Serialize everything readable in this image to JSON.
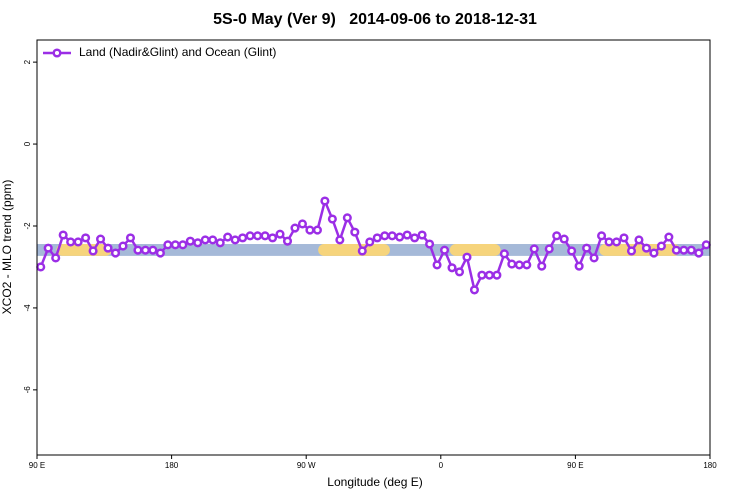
{
  "chart_data": {
    "type": "line",
    "title": "5S-0 May (Ver 9)   2014-09-06 to 2018-12-31",
    "x_label": "Longitude (deg E)",
    "y_label": "XCO2 - MLO trend (ppm)",
    "xlim": [
      90,
      540
    ],
    "ylim": [
      -7.59,
      2.54
    ],
    "xticks": [
      {
        "value": 90,
        "label": "90 E"
      },
      {
        "value": 180,
        "label": "180"
      },
      {
        "value": 270,
        "label": "90 W"
      },
      {
        "value": 360,
        "label": "0"
      },
      {
        "value": 450,
        "label": "90 E"
      },
      {
        "value": 540,
        "label": "180"
      }
    ],
    "yticks": [
      2,
      0,
      -2,
      -4,
      -6
    ],
    "legend": "top-left",
    "band": {
      "range": [
        -2.73,
        -2.44
      ],
      "color": "#a5b9d8",
      "land_color": "#f6d47c",
      "land": [
        [
          103,
          140
        ],
        [
          278,
          326
        ],
        [
          366,
          400
        ],
        [
          466,
          520
        ]
      ]
    },
    "x": [
      92.5,
      97.5,
      102.5,
      107.5,
      112.5,
      117.5,
      122.5,
      127.5,
      132.5,
      137.5,
      142.5,
      147.5,
      152.5,
      157.5,
      162.5,
      167.5,
      172.5,
      177.5,
      182.5,
      187.5,
      192.5,
      197.5,
      202.5,
      207.5,
      212.5,
      217.5,
      222.5,
      227.5,
      232.5,
      237.5,
      242.5,
      247.5,
      252.5,
      257.5,
      262.5,
      267.5,
      272.5,
      277.5,
      282.5,
      287.5,
      292.5,
      297.5,
      302.5,
      307.5,
      312.5,
      317.5,
      322.5,
      327.5,
      332.5,
      337.5,
      342.5,
      347.5,
      352.5,
      357.5,
      362.5,
      367.5,
      372.5,
      377.5,
      382.5,
      387.5,
      392.5,
      397.5,
      402.5,
      407.5,
      412.5,
      417.5,
      422.5,
      427.5,
      432.5,
      437.5,
      442.5,
      447.5,
      452.5,
      457.5,
      462.5,
      467.5,
      472.5,
      477.5,
      482.5,
      487.5,
      492.5,
      497.5,
      502.5,
      507.5,
      512.5,
      517.5,
      522.5,
      527.5,
      532.5,
      537.5
    ],
    "series": [
      {
        "name": "Land (Nadir&Glint) and Ocean (Glint)",
        "color": "#9b2ee6",
        "values": [
          -3.0,
          -2.54,
          -2.78,
          -2.22,
          -2.39,
          -2.39,
          -2.29,
          -2.61,
          -2.32,
          -2.54,
          -2.66,
          -2.49,
          -2.29,
          -2.59,
          -2.59,
          -2.59,
          -2.66,
          -2.46,
          -2.46,
          -2.46,
          -2.37,
          -2.41,
          -2.34,
          -2.34,
          -2.41,
          -2.27,
          -2.34,
          -2.29,
          -2.24,
          -2.24,
          -2.24,
          -2.29,
          -2.2,
          -2.37,
          -2.05,
          -1.95,
          -2.1,
          -2.1,
          -1.39,
          -1.83,
          -2.34,
          -1.8,
          -2.15,
          -2.61,
          -2.39,
          -2.29,
          -2.24,
          -2.24,
          -2.27,
          -2.22,
          -2.29,
          -2.22,
          -2.44,
          -2.95,
          -2.59,
          -3.02,
          -3.12,
          -2.76,
          -3.56,
          -3.2,
          -3.2,
          -3.2,
          -2.68,
          -2.93,
          -2.95,
          -2.95,
          -2.56,
          -2.98,
          -2.56,
          -2.24,
          -2.32,
          -2.61,
          -2.98,
          -2.54,
          -2.78,
          -2.24,
          -2.39,
          -2.39,
          -2.29,
          -2.61,
          -2.34,
          -2.54,
          -2.66,
          -2.49,
          -2.27,
          -2.59,
          -2.59,
          -2.59,
          -2.66,
          -2.46
        ]
      }
    ]
  }
}
